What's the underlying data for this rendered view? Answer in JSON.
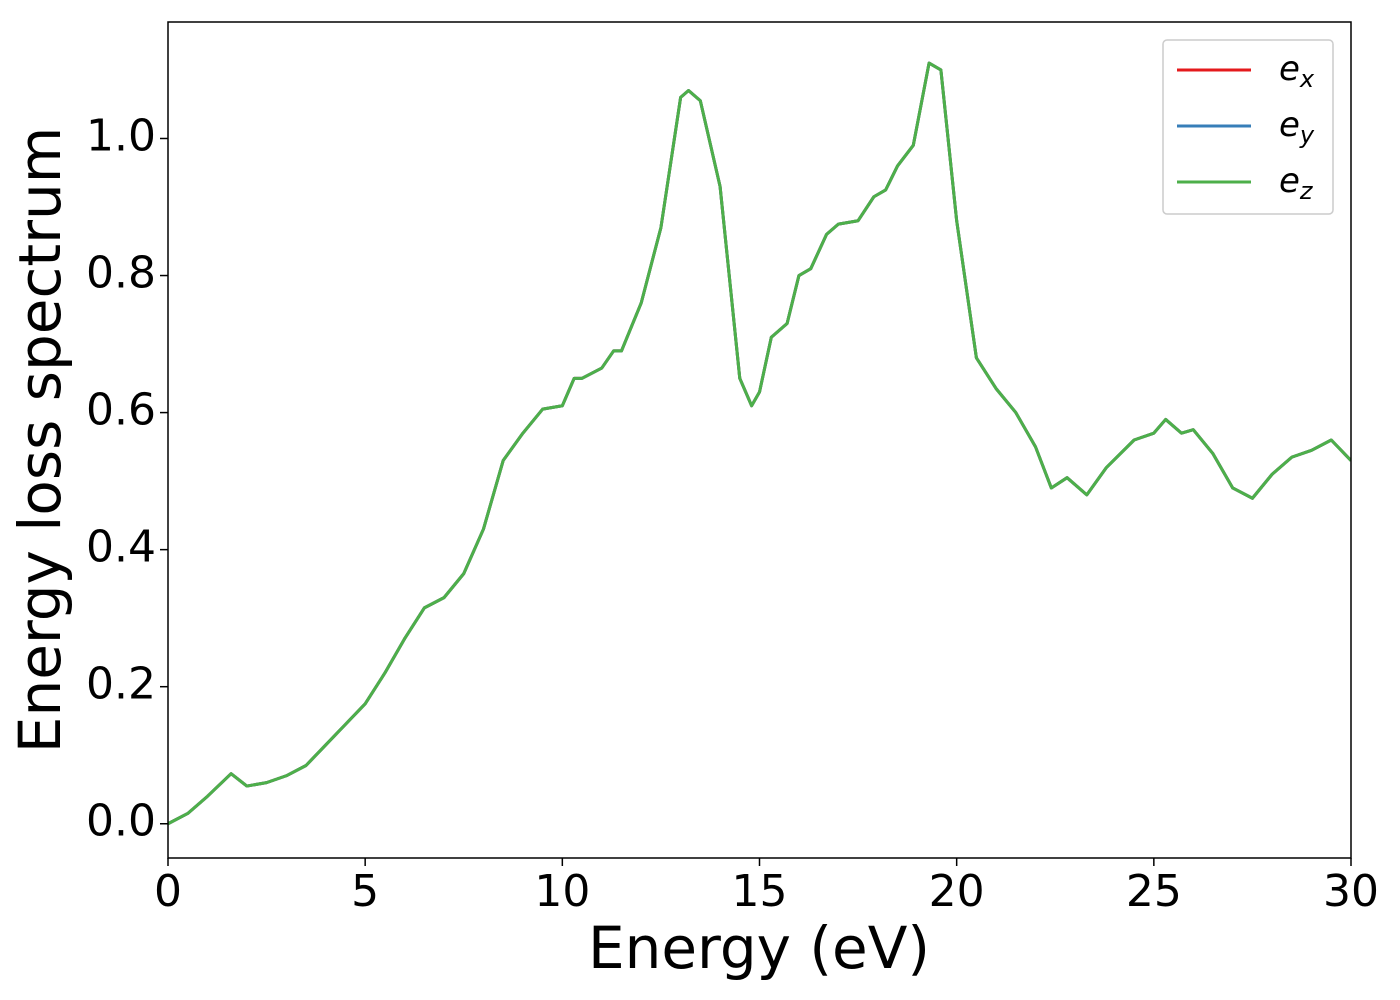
{
  "chart_data": {
    "type": "line",
    "xlabel": "Energy (eV)",
    "ylabel": "Energy loss spectrum",
    "x": [
      0,
      0.5,
      1.0,
      1.6,
      2.0,
      2.5,
      3.0,
      3.5,
      4.0,
      4.5,
      5.0,
      5.5,
      6.0,
      6.5,
      7.0,
      7.5,
      8.0,
      8.5,
      9.0,
      9.5,
      10.0,
      10.3,
      10.5,
      11.0,
      11.3,
      11.5,
      12.0,
      12.5,
      13.0,
      13.2,
      13.5,
      14.0,
      14.5,
      14.8,
      15.0,
      15.3,
      15.7,
      16.0,
      16.3,
      16.7,
      17.0,
      17.5,
      17.9,
      18.2,
      18.5,
      18.9,
      19.3,
      19.6,
      20.0,
      20.5,
      21.0,
      21.5,
      22.0,
      22.4,
      22.8,
      23.3,
      23.8,
      24.5,
      25.0,
      25.3,
      25.7,
      26.0,
      26.5,
      27.0,
      27.5,
      28.0,
      28.5,
      29.0,
      29.5,
      30.0
    ],
    "series": [
      {
        "name": "ex",
        "color": "#e41a1c",
        "values": [
          0.0,
          0.015,
          0.04,
          0.073,
          0.055,
          0.06,
          0.07,
          0.085,
          0.115,
          0.145,
          0.175,
          0.22,
          0.27,
          0.315,
          0.33,
          0.365,
          0.43,
          0.53,
          0.57,
          0.605,
          0.61,
          0.65,
          0.65,
          0.665,
          0.69,
          0.69,
          0.76,
          0.87,
          1.06,
          1.07,
          1.055,
          0.93,
          0.65,
          0.61,
          0.63,
          0.71,
          0.73,
          0.8,
          0.81,
          0.86,
          0.875,
          0.88,
          0.915,
          0.925,
          0.96,
          0.99,
          1.11,
          1.1,
          0.88,
          0.68,
          0.635,
          0.6,
          0.55,
          0.49,
          0.505,
          0.48,
          0.52,
          0.56,
          0.57,
          0.59,
          0.57,
          0.575,
          0.54,
          0.49,
          0.475,
          0.51,
          0.535,
          0.545,
          0.56,
          0.53
        ]
      },
      {
        "name": "ey",
        "color": "#377eb8",
        "values": [
          0.0,
          0.015,
          0.04,
          0.073,
          0.055,
          0.06,
          0.07,
          0.085,
          0.115,
          0.145,
          0.175,
          0.22,
          0.27,
          0.315,
          0.33,
          0.365,
          0.43,
          0.53,
          0.57,
          0.605,
          0.61,
          0.65,
          0.65,
          0.665,
          0.69,
          0.69,
          0.76,
          0.87,
          1.06,
          1.07,
          1.055,
          0.93,
          0.65,
          0.61,
          0.63,
          0.71,
          0.73,
          0.8,
          0.81,
          0.86,
          0.875,
          0.88,
          0.915,
          0.925,
          0.96,
          0.99,
          1.11,
          1.1,
          0.88,
          0.68,
          0.635,
          0.6,
          0.55,
          0.49,
          0.505,
          0.48,
          0.52,
          0.56,
          0.57,
          0.59,
          0.57,
          0.575,
          0.54,
          0.49,
          0.475,
          0.51,
          0.535,
          0.545,
          0.56,
          0.53
        ]
      },
      {
        "name": "ez",
        "color": "#4daf4a",
        "values": [
          0.0,
          0.015,
          0.04,
          0.073,
          0.055,
          0.06,
          0.07,
          0.085,
          0.115,
          0.145,
          0.175,
          0.22,
          0.27,
          0.315,
          0.33,
          0.365,
          0.43,
          0.53,
          0.57,
          0.605,
          0.61,
          0.65,
          0.65,
          0.665,
          0.69,
          0.69,
          0.76,
          0.87,
          1.06,
          1.07,
          1.055,
          0.93,
          0.65,
          0.61,
          0.63,
          0.71,
          0.73,
          0.8,
          0.81,
          0.86,
          0.875,
          0.88,
          0.915,
          0.925,
          0.96,
          0.99,
          1.11,
          1.1,
          0.88,
          0.68,
          0.635,
          0.6,
          0.55,
          0.49,
          0.505,
          0.48,
          0.52,
          0.56,
          0.57,
          0.59,
          0.57,
          0.575,
          0.54,
          0.49,
          0.475,
          0.51,
          0.535,
          0.545,
          0.56,
          0.53
        ]
      }
    ],
    "xlim": [
      0,
      30
    ],
    "xticks": [
      0,
      5,
      10,
      15,
      20,
      25,
      30
    ],
    "ylim": [
      -0.05,
      1.17
    ],
    "yticks": [
      {
        "value": 0,
        "label": "0.0"
      },
      {
        "value": 0.2,
        "label": "0.2"
      },
      {
        "value": 0.4,
        "label": "0.4"
      },
      {
        "value": 0.6,
        "label": "0.6"
      },
      {
        "value": 0.8,
        "label": "0.8"
      },
      {
        "value": 1,
        "label": "1.0"
      }
    ],
    "grid": false,
    "legend": "upper right"
  }
}
